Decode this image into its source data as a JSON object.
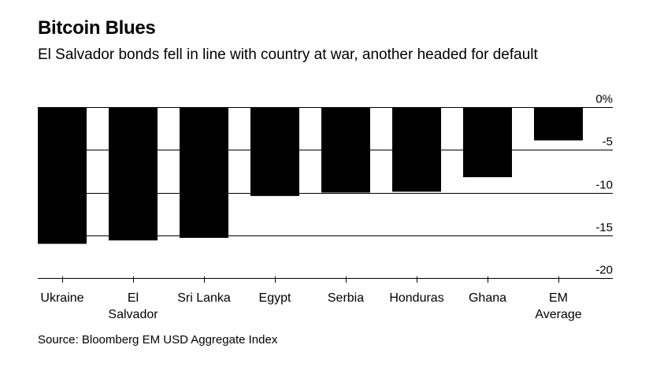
{
  "header": {
    "title": "Bitcoin Blues",
    "subtitle": "El Salvador bonds fell in line with country at war, another headed for default"
  },
  "footer": {
    "source": "Source: Bloomberg EM USD Aggregate Index"
  },
  "chart_data": {
    "type": "bar",
    "title": "Bitcoin Blues",
    "subtitle": "El Salvador bonds fell in line with country at war, another headed for default",
    "categories": [
      [
        "Ukraine"
      ],
      [
        "El",
        "Salvador"
      ],
      [
        "Sri Lanka"
      ],
      [
        "Egypt"
      ],
      [
        "Serbia"
      ],
      [
        "Honduras"
      ],
      [
        "Ghana"
      ],
      [
        "EM",
        "Average"
      ]
    ],
    "values": [
      -16.0,
      -15.6,
      -15.3,
      -10.4,
      -10.0,
      -9.9,
      -8.2,
      -3.9
    ],
    "ylim": [
      -20,
      0
    ],
    "yticks": [
      0,
      -5,
      -10,
      -15,
      -20
    ],
    "ytick_labels": [
      "0%",
      "-5",
      "-10",
      "-15",
      "-20"
    ],
    "y_axis_side": "right",
    "bar_color": "#000000",
    "xlabel": "",
    "ylabel": ""
  }
}
